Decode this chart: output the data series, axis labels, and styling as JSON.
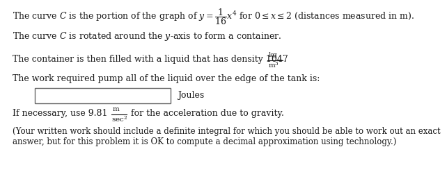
{
  "bg_color": "#ffffff",
  "text_color": "#1a1a1a",
  "font_size": 9.0,
  "small_font_size": 7.5,
  "line1a": "The curve ",
  "line1b": " is the portion of the graph of ",
  "line1c": " = ",
  "line1d": " for 0 ≤ ",
  "line1e": " ≤ 2 (distances measured in m).",
  "line2a": "The curve ",
  "line2b": " is rotated around the ",
  "line2c": "-axis to form a container.",
  "line3a": "The container is then filled with a liquid that has density 1047 ",
  "line4": "The work required pump all of the liquid over the edge of the tank is:",
  "line5": "Joules",
  "line6a": "If necessary, use 9.81",
  "line6b": " for the acceleration due to gravity.",
  "line7": "(Your written work should include a definite integral for which you should be able to work out an exact",
  "line8": "answer, but for this problem it is OK to compute a decimal approximation using technology.)"
}
